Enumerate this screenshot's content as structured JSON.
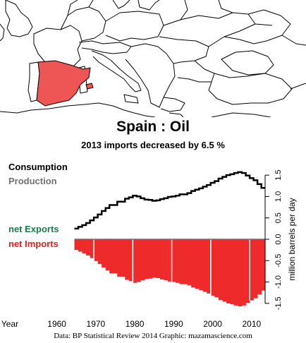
{
  "header": {
    "title": "Spain :  Oil",
    "subtitle": "2013 imports decreased by 6.5 %"
  },
  "legend": {
    "consumption": "Consumption",
    "production": "Production",
    "net_exports": "net Exports",
    "net_imports": "net Imports"
  },
  "footer": {
    "source": "Data: BP Statistical Review 2014    Graphic: mazamascience.com"
  },
  "colors": {
    "highlight_country": "#ee5555",
    "imports": "#ee2a2a",
    "exports": "#1a7a4a",
    "production": "#707070",
    "consumption": "#000000"
  },
  "chart_data": {
    "type": "area",
    "title": "Spain :  Oil",
    "subtitle": "2013 imports decreased by 6.5 %",
    "xlabel": "Year",
    "ylabel": "million barrels per day",
    "xlim": [
      1955,
      2016
    ],
    "ylim": [
      -1.75,
      1.75
    ],
    "x_ticks": [
      1960,
      1970,
      1980,
      1990,
      2000,
      2010
    ],
    "y_ticks": [
      -1.5,
      -1.0,
      -0.5,
      0.0,
      0.5,
      1.0,
      1.5
    ],
    "years": [
      1965,
      1966,
      1967,
      1968,
      1969,
      1970,
      1971,
      1972,
      1973,
      1974,
      1975,
      1976,
      1977,
      1978,
      1979,
      1980,
      1981,
      1982,
      1983,
      1984,
      1985,
      1986,
      1987,
      1988,
      1989,
      1990,
      1991,
      1992,
      1993,
      1994,
      1995,
      1996,
      1997,
      1998,
      1999,
      2000,
      2001,
      2002,
      2003,
      2004,
      2005,
      2006,
      2007,
      2008,
      2009,
      2010,
      2011,
      2012,
      2013
    ],
    "series": [
      {
        "name": "Consumption",
        "values": [
          0.25,
          0.29,
          0.33,
          0.38,
          0.44,
          0.51,
          0.58,
          0.66,
          0.73,
          0.8,
          0.8,
          0.88,
          0.88,
          0.95,
          0.98,
          1.02,
          1.0,
          0.96,
          0.93,
          0.92,
          0.9,
          0.91,
          0.94,
          0.96,
          0.99,
          1.0,
          1.02,
          1.05,
          1.05,
          1.08,
          1.13,
          1.16,
          1.19,
          1.23,
          1.27,
          1.32,
          1.36,
          1.42,
          1.46,
          1.5,
          1.52,
          1.55,
          1.57,
          1.55,
          1.49,
          1.43,
          1.38,
          1.29,
          1.2
        ]
      },
      {
        "name": "Production",
        "values": [
          0.0,
          0.0,
          0.0,
          0.0,
          0.0,
          0.0,
          0.0,
          0.0,
          0.0,
          0.0,
          0.0,
          0.0,
          0.0,
          0.0,
          0.0,
          0.0,
          0.0,
          0.0,
          0.0,
          0.0,
          0.0,
          0.0,
          0.0,
          0.0,
          0.0,
          0.0,
          0.0,
          0.0,
          0.0,
          0.0,
          0.0,
          0.0,
          0.0,
          0.0,
          0.0,
          0.0,
          0.0,
          0.0,
          0.0,
          0.0,
          0.0,
          0.0,
          0.0,
          0.0,
          0.0,
          0.0,
          0.0,
          0.0,
          0.0
        ]
      },
      {
        "name": "net Imports",
        "values": [
          0.25,
          0.29,
          0.33,
          0.38,
          0.44,
          0.51,
          0.58,
          0.66,
          0.73,
          0.8,
          0.8,
          0.88,
          0.88,
          0.95,
          0.98,
          1.02,
          1.0,
          0.96,
          0.93,
          0.92,
          0.9,
          0.91,
          0.94,
          0.96,
          0.99,
          1.0,
          1.02,
          1.05,
          1.05,
          1.08,
          1.13,
          1.16,
          1.19,
          1.23,
          1.27,
          1.32,
          1.36,
          1.42,
          1.46,
          1.5,
          1.52,
          1.55,
          1.57,
          1.55,
          1.49,
          1.43,
          1.38,
          1.29,
          1.2
        ]
      }
    ]
  }
}
